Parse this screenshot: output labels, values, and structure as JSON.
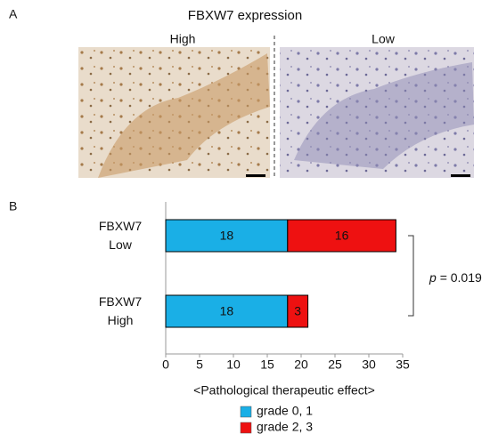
{
  "panel_a": {
    "label": "A",
    "title": "FBXW7 expression",
    "left_label": "High",
    "right_label": "Low"
  },
  "panel_b_label": "B",
  "chart_data": {
    "type": "stacked-barh",
    "categories": [
      "FBXW7 Low",
      "FBXW7 High"
    ],
    "series": [
      {
        "name": "grade 0, 1",
        "color": "#1aafe6",
        "values": [
          18,
          18
        ]
      },
      {
        "name": "grade 2, 3",
        "color": "#ee1111",
        "values": [
          16,
          3
        ]
      }
    ],
    "xlim": [
      0,
      35
    ],
    "xticks": [
      0,
      5,
      10,
      15,
      20,
      25,
      30,
      35
    ],
    "xlabel": "<Pathological therapeutic effect>",
    "annotation": {
      "symbol": "p",
      "text": "= 0.019"
    }
  }
}
